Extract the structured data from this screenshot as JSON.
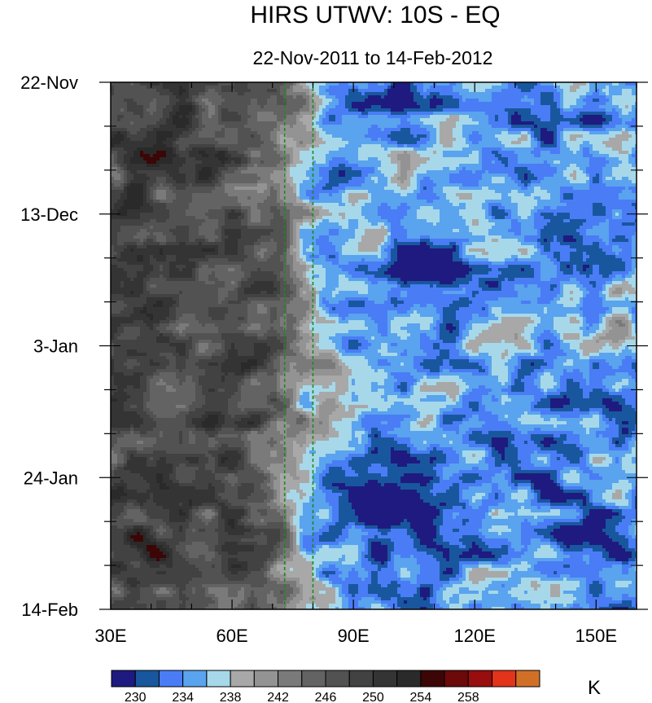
{
  "chart_data": {
    "type": "heatmap",
    "title": "HIRS UTWV: 10S - EQ",
    "subtitle": "22-Nov-2011 to 14-Feb-2012",
    "units": "K",
    "x_ticks": [
      {
        "label": "30E",
        "value": 30
      },
      {
        "label": "60E",
        "value": 60
      },
      {
        "label": "90E",
        "value": 90
      },
      {
        "label": "120E",
        "value": 120
      },
      {
        "label": "150E",
        "value": 150
      }
    ],
    "xlim": [
      30,
      160
    ],
    "x_minor_step": 10,
    "y_ticks": [
      {
        "label": "22-Nov",
        "value": 0
      },
      {
        "label": "13-Dec",
        "value": 21
      },
      {
        "label": "3-Jan",
        "value": 42
      },
      {
        "label": "24-Jan",
        "value": 63
      },
      {
        "label": "14-Feb",
        "value": 84
      }
    ],
    "ylim": [
      0,
      84
    ],
    "y_minor_step": 7,
    "reference_lines": [
      {
        "x": 73
      },
      {
        "x": 80
      }
    ],
    "levels": [
      230,
      232,
      234,
      236,
      238,
      240,
      242,
      244,
      246,
      248,
      250,
      252,
      254,
      256,
      258
    ],
    "colorbar_labels": [
      "230",
      "234",
      "238",
      "242",
      "246",
      "250",
      "254",
      "258"
    ],
    "colors": [
      "#1f1a80",
      "#18579e",
      "#4a7cf6",
      "#5aa3ee",
      "#a6d8ea",
      "#a8a8a8",
      "#939393",
      "#7a7a7a",
      "#636363",
      "#525252",
      "#424242",
      "#343434",
      "#2a2a2a",
      "#3c0606",
      "#6c0909",
      "#980d0d",
      "#e2331b",
      "#d07027"
    ]
  }
}
